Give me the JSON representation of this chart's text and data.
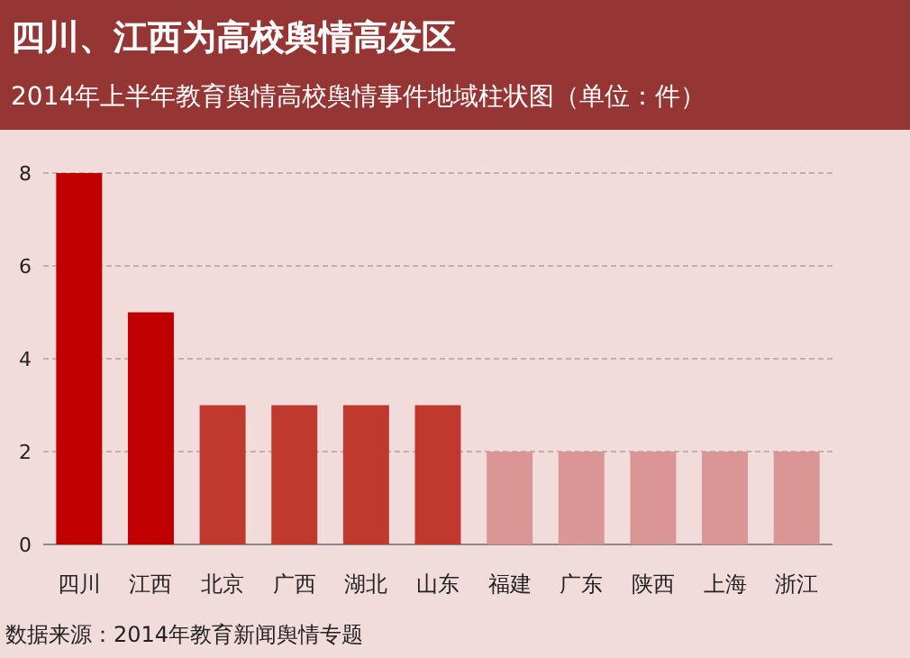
{
  "chart_data": {
    "type": "bar",
    "title": "四川、江西为高校舆情高发区",
    "subtitle": "2014年上半年教育舆情高校舆情事件地域柱状图（单位：件）",
    "categories": [
      "四川",
      "江西",
      "北京",
      "广西",
      "湖北",
      "山东",
      "福建",
      "广东",
      "陕西",
      "上海",
      "浙江"
    ],
    "values": [
      8,
      5,
      3,
      3,
      3,
      3,
      2,
      2,
      2,
      2,
      2
    ],
    "colors": [
      "#c00000",
      "#c00000",
      "#c0392f",
      "#c0392f",
      "#c0392f",
      "#c0392f",
      "#d99694",
      "#d99694",
      "#d99694",
      "#d99694",
      "#d99694"
    ],
    "ylim": [
      0,
      8
    ],
    "yticks": [
      0,
      2,
      4,
      6,
      8
    ],
    "grid": "y",
    "annotations": [
      "数据来源：2014年教育新闻舆情专题"
    ]
  }
}
